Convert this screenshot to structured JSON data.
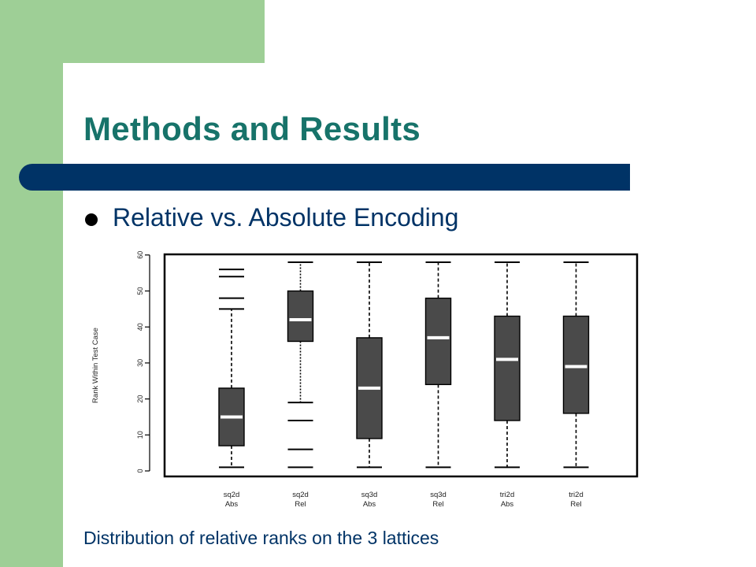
{
  "slide": {
    "title": "Methods and Results",
    "bullet": "Relative vs. Absolute Encoding",
    "caption": "Distribution of relative ranks on the 3 lattices"
  },
  "colors": {
    "green_band": "#9ecf96",
    "title_text": "#17736a",
    "title_bar": "#003366",
    "body_text": "#003366",
    "box_fill": "#4a4a4a",
    "median": "#ffffff"
  },
  "chart_data": {
    "type": "box",
    "ylabel": "Rank Within Test Case",
    "ylim": [
      0,
      60
    ],
    "yticks": [
      "0",
      "10",
      "20",
      "30",
      "40",
      "50",
      "60"
    ],
    "grid": false,
    "categories": [
      {
        "line1": "sq2d",
        "line2": "Abs",
        "whisker_low": 1,
        "q1": 7,
        "median": 15,
        "q3": 23,
        "whisker_high": 45,
        "outliers": [
          48,
          54,
          56
        ]
      },
      {
        "line1": "sq2d",
        "line2": "Rel",
        "whisker_low": 19,
        "q1": 36,
        "median": 42,
        "q3": 50,
        "whisker_high": 58,
        "outliers": [
          1,
          6,
          14
        ]
      },
      {
        "line1": "sq3d",
        "line2": "Abs",
        "whisker_low": 1,
        "q1": 9,
        "median": 23,
        "q3": 37,
        "whisker_high": 58,
        "outliers": []
      },
      {
        "line1": "sq3d",
        "line2": "Rel",
        "whisker_low": 1,
        "q1": 24,
        "median": 37,
        "q3": 48,
        "whisker_high": 58,
        "outliers": []
      },
      {
        "line1": "tri2d",
        "line2": "Abs",
        "whisker_low": 1,
        "q1": 14,
        "median": 31,
        "q3": 43,
        "whisker_high": 58,
        "outliers": []
      },
      {
        "line1": "tri2d",
        "line2": "Rel",
        "whisker_low": 1,
        "q1": 16,
        "median": 29,
        "q3": 43,
        "whisker_high": 58,
        "outliers": []
      }
    ]
  }
}
